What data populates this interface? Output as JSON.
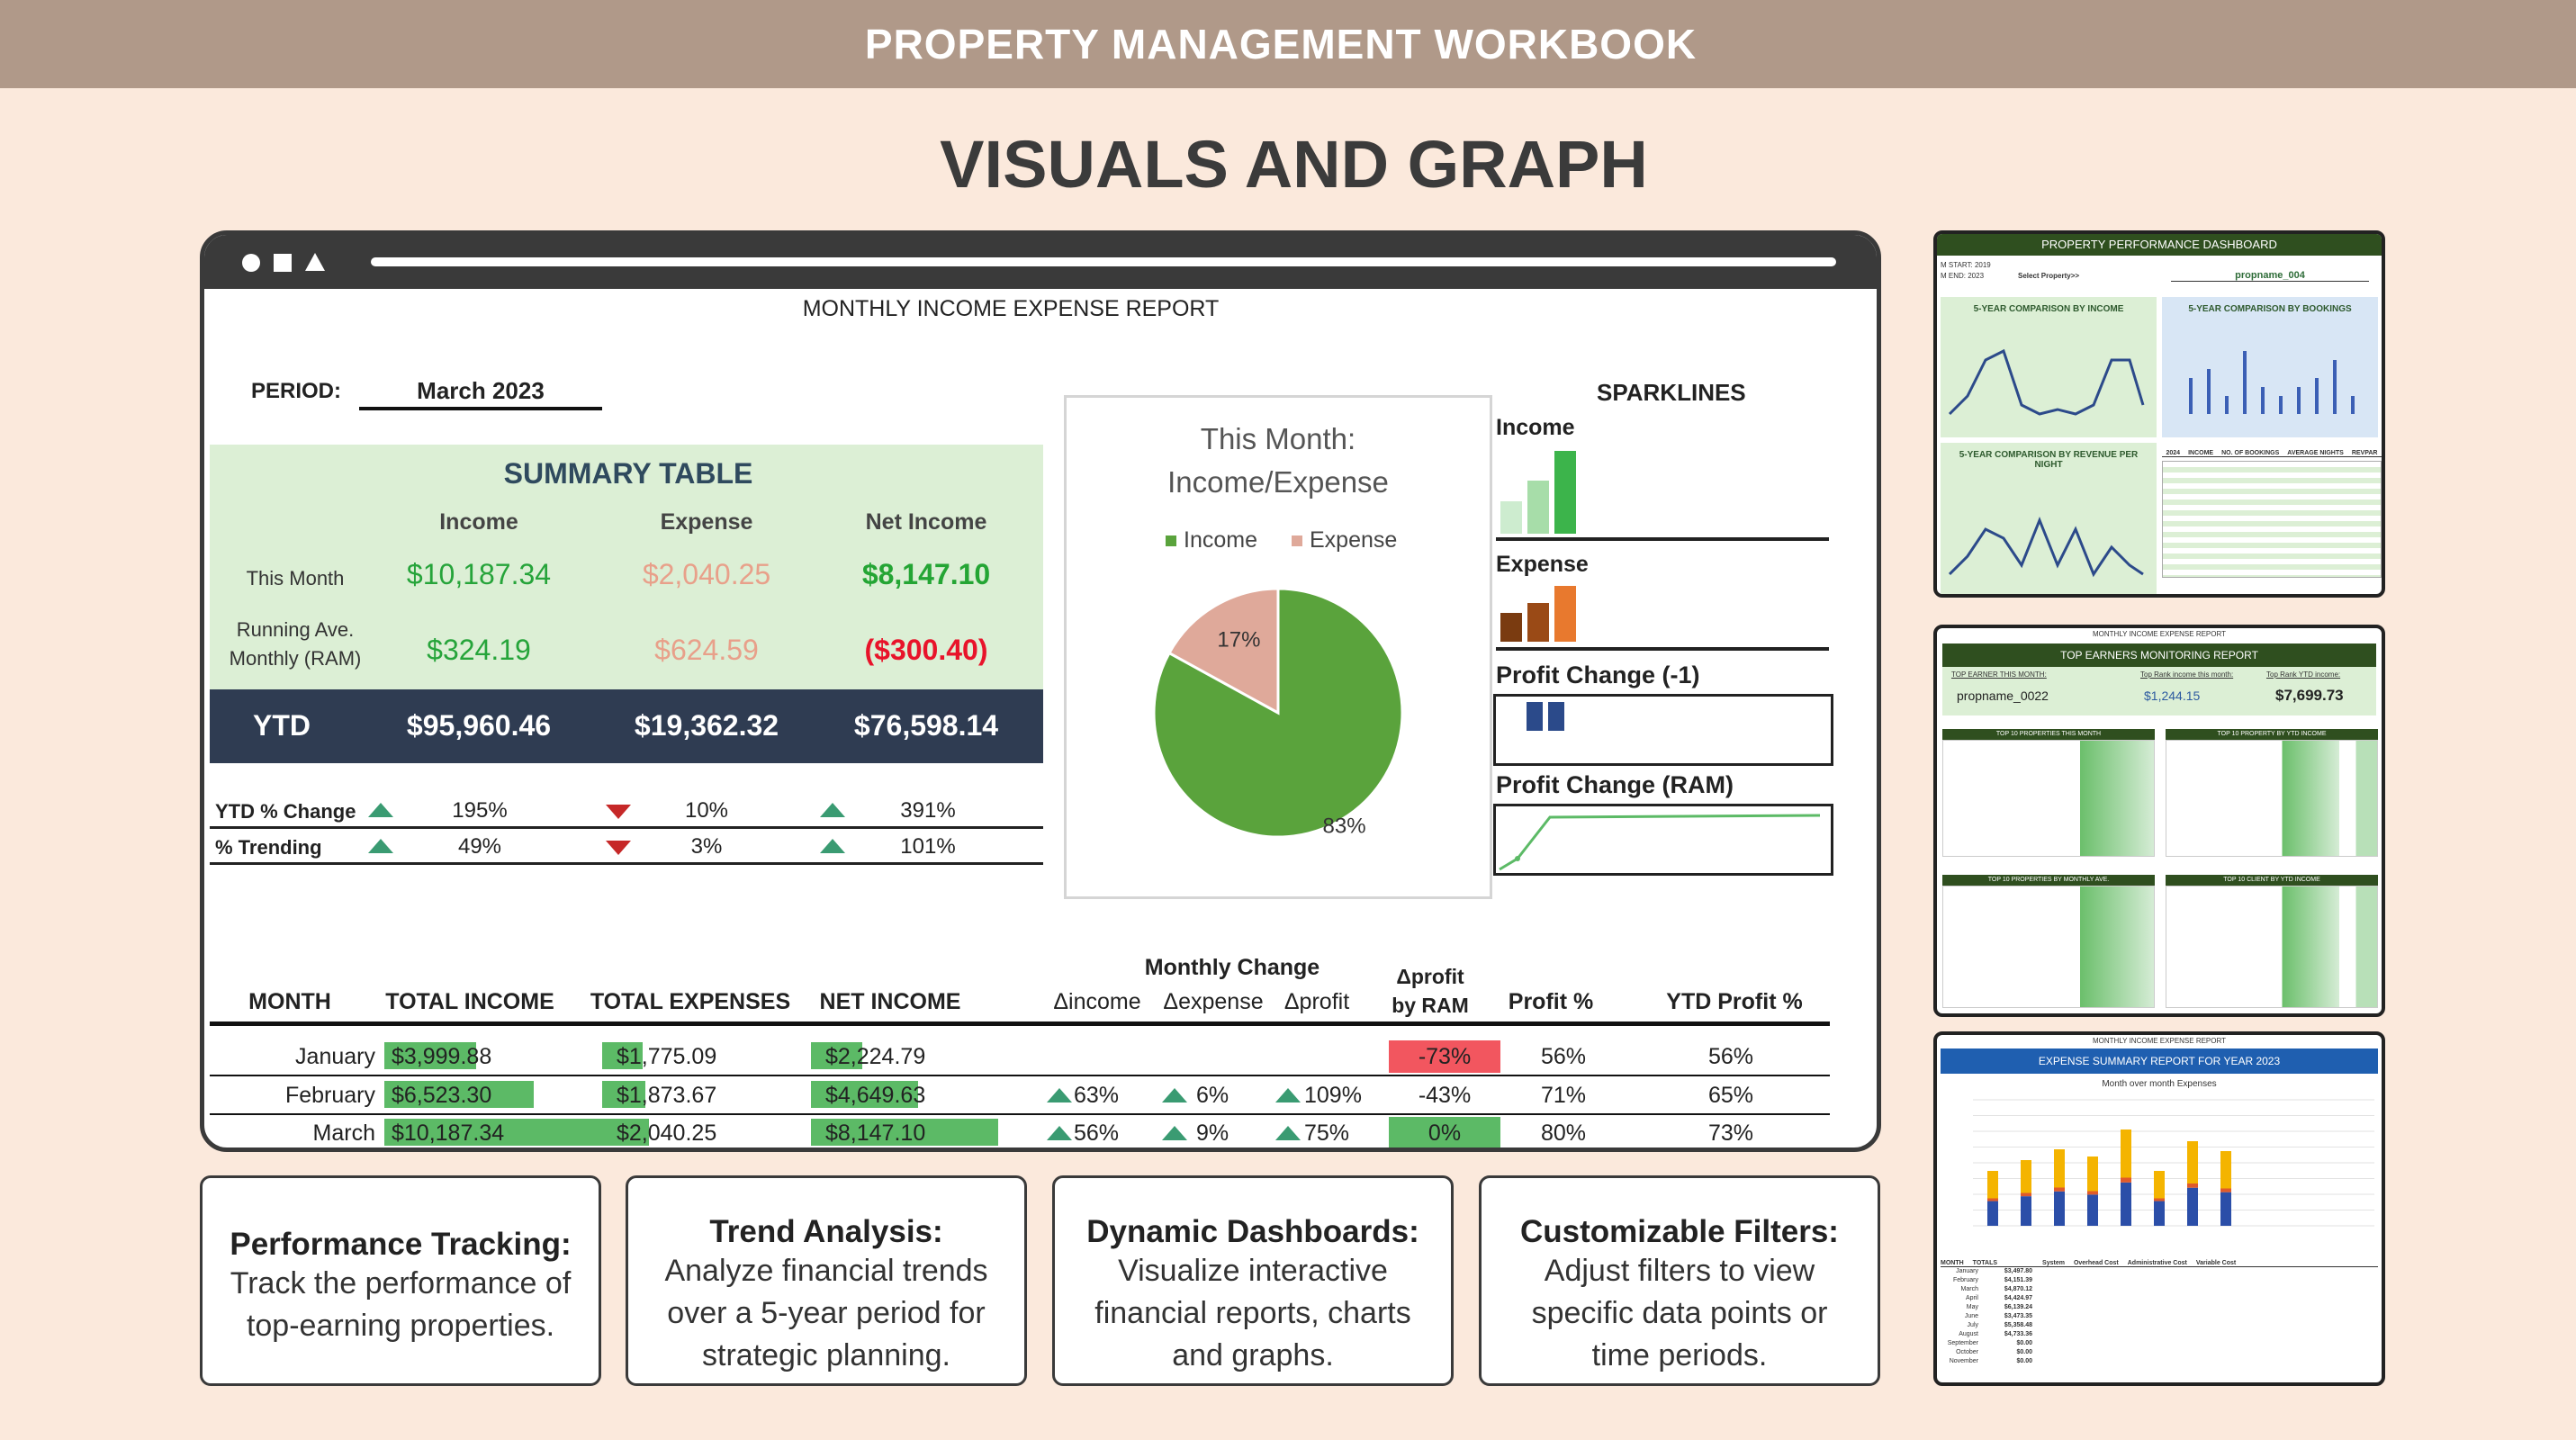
{
  "header": {
    "title": "PROPERTY MANAGEMENT WORKBOOK"
  },
  "page_title": "VISUALS AND GRAPH",
  "report": {
    "title": "MONTHLY INCOME EXPENSE REPORT",
    "period_label": "PERIOD:",
    "period_value": "March 2023",
    "summary": {
      "title": "SUMMARY TABLE",
      "headers": [
        "Income",
        "Expense",
        "Net Income"
      ],
      "this_month_label": "This Month",
      "this_month": [
        "$10,187.34",
        "$2,040.25",
        "$8,147.10"
      ],
      "running_label": "Running Ave. Monthly (RAM)",
      "running": [
        "$324.19",
        "$624.59",
        "($300.40)"
      ],
      "ytd_label": "YTD",
      "ytd": [
        "$95,960.46",
        "$19,362.32",
        "$76,598.14"
      ]
    },
    "ytd_change": {
      "label": "YTD % Change",
      "values": [
        "195%",
        "10%",
        "391%"
      ],
      "directions": [
        "up",
        "down",
        "up"
      ]
    },
    "trending": {
      "label": "% Trending",
      "values": [
        "49%",
        "3%",
        "101%"
      ],
      "directions": [
        "up",
        "down",
        "up"
      ]
    },
    "pie": {
      "title_line1": "This Month:",
      "title_line2": "Income/Expense",
      "legend": [
        "Income",
        "Expense"
      ],
      "colors": {
        "income": "#5aa33c",
        "expense": "#dfa99a"
      },
      "chart_data": {
        "type": "pie",
        "labels": [
          "Income",
          "Expense"
        ],
        "values": [
          83,
          17
        ],
        "display": [
          "83%",
          "17%"
        ]
      }
    },
    "sparklines": {
      "title": "SPARKLINES",
      "income_label": "Income",
      "expense_label": "Expense",
      "profit_change_label": "Profit Change (-1)",
      "profit_ram_label": "Profit Change (RAM)",
      "income_values": [
        3999.88,
        6523.3,
        10187.34
      ],
      "expense_values": [
        1775.09,
        1873.67,
        2040.25
      ]
    },
    "monthly": {
      "change_header": "Monthly Change",
      "headers": [
        "MONTH",
        "TOTAL INCOME",
        "TOTAL EXPENSES",
        "NET INCOME",
        "Δincome",
        "Δexpense",
        "Δprofit",
        "Δprofit by RAM",
        "Profit %",
        "YTD Profit %"
      ],
      "dprofit_line1": "Δprofit",
      "dprofit_line2": "by RAM",
      "rows": [
        {
          "month": "January",
          "income": "$3,999.88",
          "income_v": 3999.88,
          "expenses": "$1,775.09",
          "expenses_v": 1775.09,
          "net": "$2,224.79",
          "net_v": 2224.79,
          "dincome": "",
          "dexpense": "",
          "dprofit": "",
          "ram": "-73%",
          "profit": "56%",
          "ytd": "56%"
        },
        {
          "month": "February",
          "income": "$6,523.30",
          "income_v": 6523.3,
          "expenses": "$1,873.67",
          "expenses_v": 1873.67,
          "net": "$4,649.63",
          "net_v": 4649.63,
          "dincome": "63%",
          "dexpense": "6%",
          "dprofit": "109%",
          "ram": "-43%",
          "profit": "71%",
          "ytd": "65%"
        },
        {
          "month": "March",
          "income": "$10,187.34",
          "income_v": 10187.34,
          "expenses": "$2,040.25",
          "expenses_v": 2040.25,
          "net": "$8,147.10",
          "net_v": 8147.1,
          "dincome": "56%",
          "dexpense": "9%",
          "dprofit": "75%",
          "ram": "0%",
          "profit": "80%",
          "ytd": "73%"
        }
      ]
    }
  },
  "features": [
    {
      "title": "Performance Tracking:",
      "desc": [
        "Track the performance of",
        "top-earning properties."
      ]
    },
    {
      "title": "Trend Analysis:",
      "desc": [
        "Analyze financial trends",
        "over a 5-year period for",
        "strategic planning."
      ]
    },
    {
      "title": "Dynamic Dashboards:",
      "desc": [
        "Visualize interactive",
        "financial reports, charts",
        "and graphs."
      ]
    },
    {
      "title": "Customizable Filters:",
      "desc": [
        "Adjust filters to view",
        "specific data points or",
        "time periods."
      ]
    }
  ],
  "thumbs": {
    "dashboard": {
      "title": "PROPERTY PERFORMANCE DASHBOARD",
      "property": "propname_004",
      "select_label": "Select Property>>",
      "start_label": "M START:",
      "start": "2019",
      "end_label": "M END:",
      "end": "2023",
      "panel1": "5-YEAR COMPARISON BY INCOME",
      "panel2": "5-YEAR COMPARISON BY BOOKINGS",
      "panel3": "5-YEAR COMPARISON BY REVENUE PER NIGHT",
      "table_year": "2024",
      "table_cols": [
        "INCOME",
        "NO. OF BOOKINGS",
        "AVERAGE NIGHTS",
        "REVPAR"
      ]
    },
    "earners": {
      "top_title": "MONTHLY INCOME EXPENSE REPORT",
      "title": "TOP EARNERS MONITORING REPORT",
      "col1": "TOP EARNER THIS MONTH:",
      "col2": "Top Rank income this month:",
      "col3": "Top Rank YTD income:",
      "val1": "propname_0022",
      "val2": "$1,244.15",
      "val3": "$7,699.73",
      "t1": "TOP 10 PROPERTIES THIS MONTH",
      "t2": "TOP 10 PROPERTY BY YTD INCOME",
      "t3": "TOP 10 PROPERTIES BY MONTHLY AVE.",
      "t4": "TOP 10 CLIENT BY YTD INCOME"
    },
    "expense": {
      "top_title": "MONTHLY INCOME EXPENSE REPORT",
      "title": "EXPENSE SUMMARY REPORT FOR YEAR 2023",
      "subtitle": "Month over month Expenses",
      "table_headers": [
        "MONTH",
        "TOTALS",
        "System",
        "Overhead Cost",
        "Administrative Cost",
        "Variable Cost"
      ],
      "months": [
        "January",
        "February",
        "March",
        "April",
        "May",
        "June",
        "July",
        "August",
        "September",
        "October",
        "November"
      ],
      "totals": [
        "$3,497.80",
        "$4,151.39",
        "$4,870.12",
        "$4,424.97",
        "$6,139.24",
        "$3,473.35",
        "$5,358.48",
        "$4,733.36",
        "$0.00",
        "$0.00",
        "$0.00"
      ],
      "bars": [
        3497.8,
        4151.39,
        4870.12,
        4424.97,
        6139.24,
        3473.35,
        5358.48,
        4733.36,
        0,
        0,
        0
      ]
    }
  }
}
